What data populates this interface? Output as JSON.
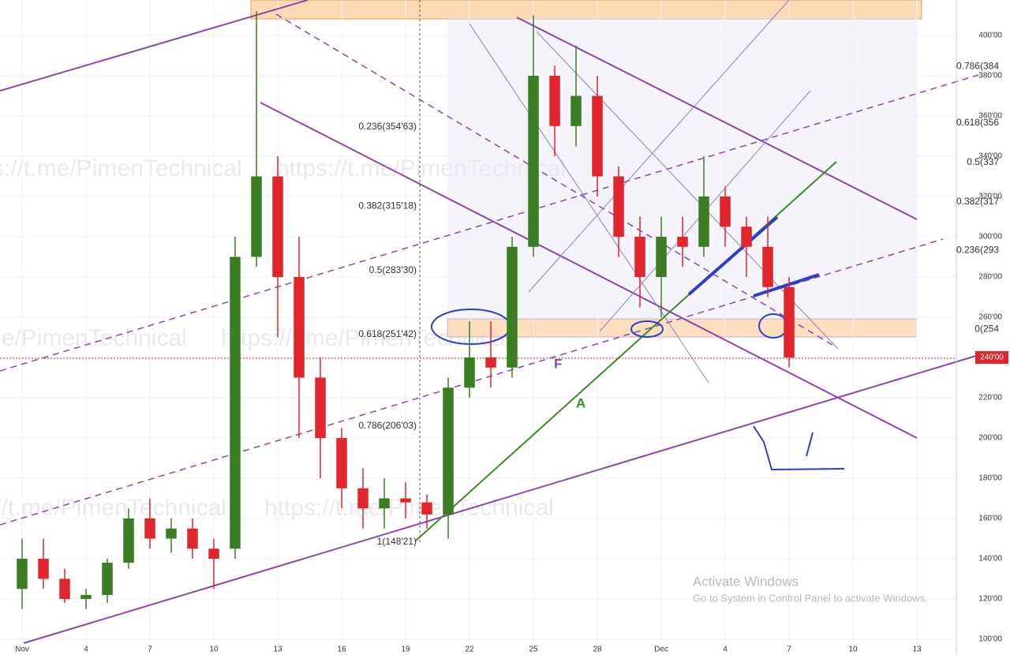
{
  "chart_data": {
    "type": "candlestick",
    "up_color": "#3b7d23",
    "down_color": "#e0262c",
    "x": [
      0,
      1,
      2,
      3,
      4,
      5,
      6,
      7,
      8,
      9,
      10,
      11,
      12,
      13,
      14,
      15,
      16,
      17,
      18,
      19,
      20,
      21,
      22,
      23,
      24,
      25,
      26,
      27,
      28,
      29,
      30,
      31,
      32,
      33,
      34,
      35,
      36
    ],
    "open": [
      125,
      140,
      130,
      120,
      122,
      138,
      160,
      150,
      155,
      145,
      145,
      290,
      330,
      280,
      230,
      200,
      175,
      165,
      170,
      168,
      162,
      225,
      240,
      235,
      295,
      380,
      355,
      370,
      330,
      300,
      280,
      300,
      295,
      320,
      305,
      295,
      275
    ],
    "high": [
      150,
      150,
      135,
      125,
      140,
      165,
      170,
      160,
      160,
      150,
      300,
      412,
      340,
      300,
      240,
      205,
      185,
      180,
      178,
      172,
      230,
      258,
      258,
      300,
      410,
      385,
      395,
      380,
      335,
      310,
      310,
      310,
      340,
      325,
      310,
      310,
      280
    ],
    "low": [
      115,
      125,
      118,
      115,
      118,
      135,
      145,
      143,
      140,
      125,
      140,
      285,
      250,
      200,
      180,
      165,
      155,
      155,
      160,
      155,
      150,
      220,
      225,
      230,
      290,
      340,
      345,
      320,
      290,
      265,
      260,
      285,
      290,
      295,
      280,
      270,
      235
    ],
    "close": [
      140,
      130,
      120,
      122,
      138,
      160,
      150,
      155,
      145,
      140,
      290,
      330,
      280,
      230,
      200,
      175,
      165,
      170,
      168,
      162,
      225,
      240,
      235,
      295,
      380,
      355,
      370,
      330,
      300,
      280,
      300,
      295,
      320,
      305,
      295,
      275,
      240
    ],
    "xlim": [
      -1.037,
      43.85
    ],
    "xticks": [
      {
        "value": 0,
        "label": "Nov"
      },
      {
        "value": 3,
        "label": "4"
      },
      {
        "value": 6,
        "label": "7"
      },
      {
        "value": 9,
        "label": "10"
      },
      {
        "value": 12,
        "label": "13"
      },
      {
        "value": 15,
        "label": "16"
      },
      {
        "value": 18,
        "label": "19"
      },
      {
        "value": 21,
        "label": "22"
      },
      {
        "value": 24,
        "label": "25"
      },
      {
        "value": 27,
        "label": "28"
      },
      {
        "value": 30,
        "label": "Dec"
      },
      {
        "value": 33,
        "label": "4"
      },
      {
        "value": 36,
        "label": "7"
      },
      {
        "value": 39,
        "label": "10"
      },
      {
        "value": 42,
        "label": "13"
      }
    ],
    "ylim": [
      92.16,
      417.65
    ],
    "yticks": [
      {
        "value": 100,
        "label": "100'00"
      },
      {
        "value": 120,
        "label": "120'00"
      },
      {
        "value": 140,
        "label": "140'00"
      },
      {
        "value": 160,
        "label": "160'00"
      },
      {
        "value": 180,
        "label": "180'00"
      },
      {
        "value": 200,
        "label": "200'00"
      },
      {
        "value": 220,
        "label": "220'00"
      },
      {
        "value": 240,
        "label": "240'00"
      },
      {
        "value": 260,
        "label": "260'00"
      },
      {
        "value": 280,
        "label": "280'00"
      },
      {
        "value": 300,
        "label": "300'00"
      },
      {
        "value": 320,
        "label": "320'00"
      },
      {
        "value": 340,
        "label": "340'00"
      },
      {
        "value": 360,
        "label": "360'00"
      },
      {
        "value": 380,
        "label": "380'00"
      },
      {
        "value": 400,
        "label": "400'00"
      }
    ],
    "fib_left": [
      {
        "value": 148.21,
        "label": "1(148'21)"
      },
      {
        "value": 206.03,
        "label": "0.786(206'03)"
      },
      {
        "value": 251.42,
        "label": "0.618(251'42)"
      },
      {
        "value": 283.3,
        "label": "0.5(283'30)"
      },
      {
        "value": 315.18,
        "label": "0.382(315'18)"
      },
      {
        "value": 354.63,
        "label": "0.236(354'63)"
      }
    ],
    "fib_right": [
      {
        "value": 384.5,
        "label": "0.786(384"
      },
      {
        "value": 356.6,
        "label": "0.618(356"
      },
      {
        "value": 337,
        "label": "0.5(337"
      },
      {
        "value": 317.4,
        "label": "0.382(317"
      },
      {
        "value": 293.2,
        "label": "0.236(293"
      },
      {
        "value": 254,
        "label": "0(254"
      }
    ],
    "last_price": {
      "value": 240,
      "label": "240'00"
    },
    "annotations": [
      "F",
      "A"
    ],
    "watermark": "https://t.me/PimenTechnical",
    "os_notice": [
      "Activate Windows",
      "Go to System in Control Panel to activate Windows."
    ]
  }
}
